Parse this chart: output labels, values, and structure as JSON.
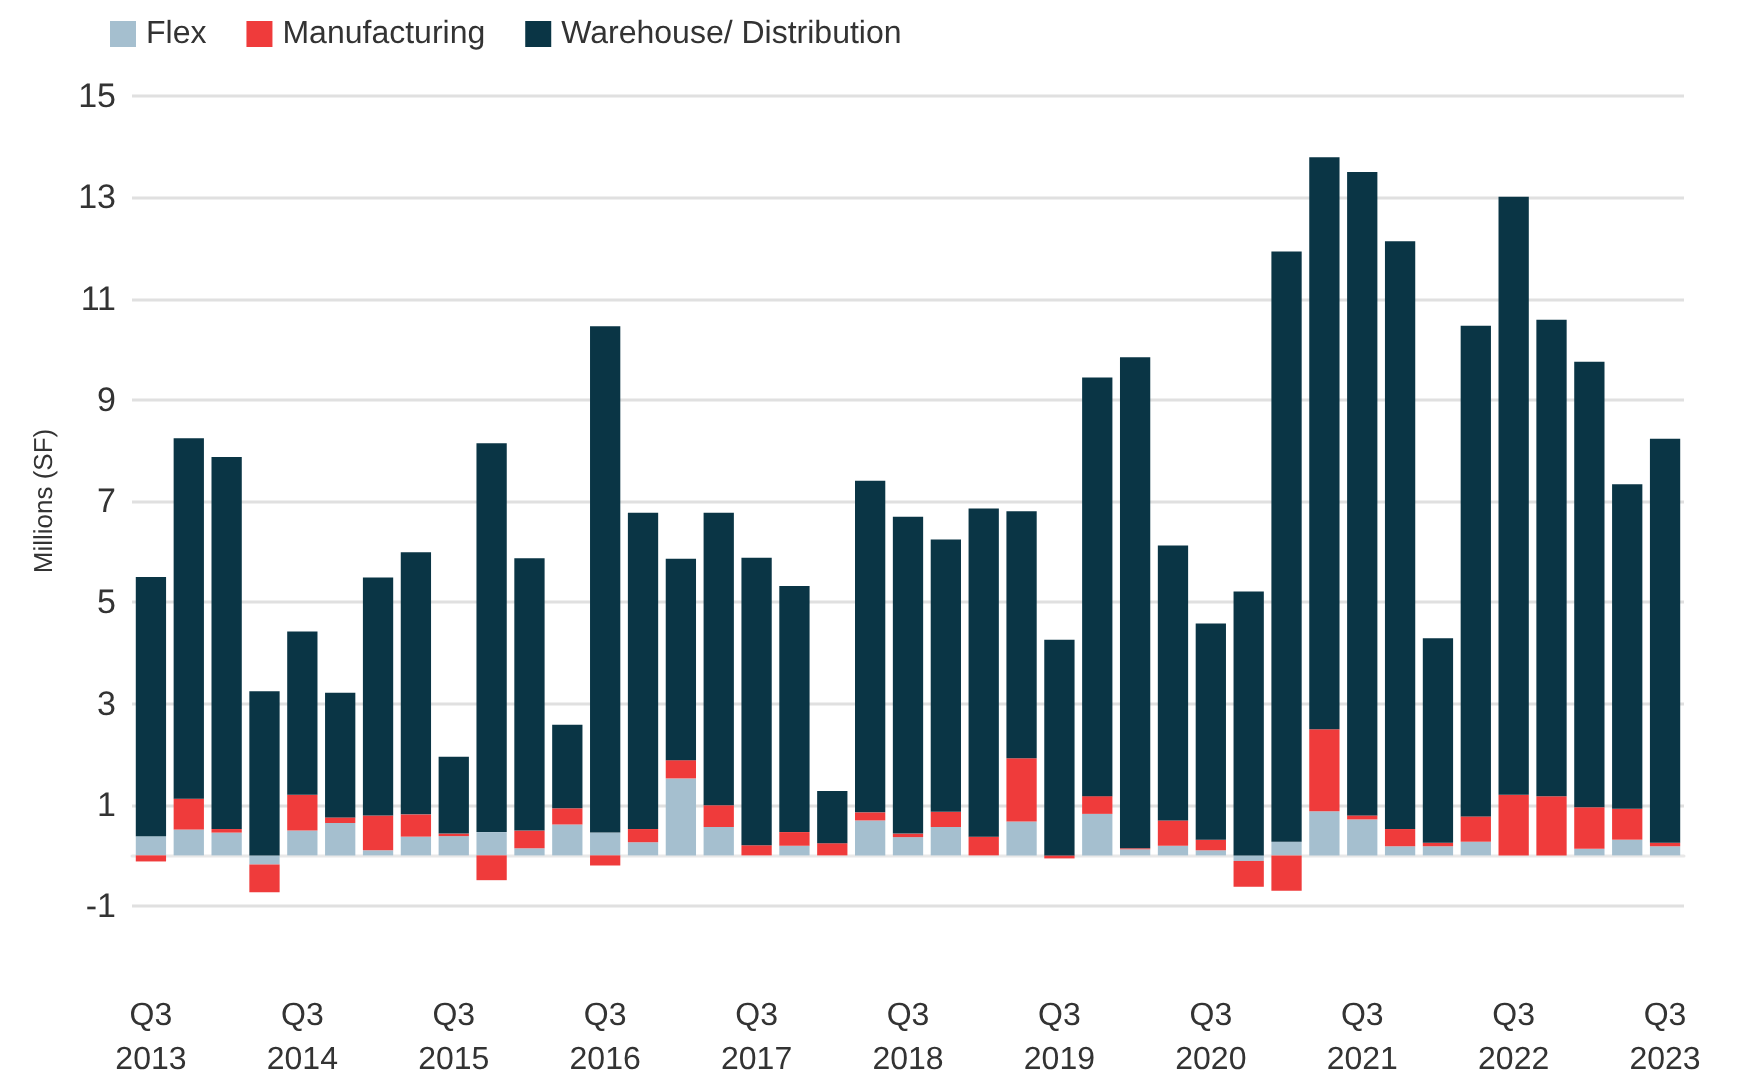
{
  "chart_data": {
    "type": "bar",
    "stacked": true,
    "ylabel": "Millions (SF)",
    "categories": [
      "Q3\n2013",
      null,
      null,
      null,
      "Q3\n2014",
      null,
      null,
      null,
      "Q3\n2015",
      null,
      null,
      null,
      "Q3\n2016",
      null,
      null,
      null,
      "Q3\n2017",
      null,
      null,
      null,
      "Q3\n2018",
      null,
      null,
      null,
      "Q3\n2019",
      null,
      null,
      null,
      "Q3\n2020",
      null,
      null,
      null,
      "Q3\n2021",
      null,
      null,
      null,
      "Q3\n2022",
      null,
      null,
      null,
      "Q3\n2023"
    ],
    "series": [
      {
        "name": "Flex",
        "color": "#a5bfcf",
        "values": [
          0.38,
          0.51,
          0.45,
          -0.18,
          0.49,
          0.64,
          0.1,
          0.37,
          0.38,
          0.46,
          0.14,
          0.61,
          0.45,
          0.26,
          1.52,
          0.56,
          null,
          0.19,
          null,
          0.69,
          0.36,
          0.56,
          0,
          0.67,
          0,
          0.82,
          0.12,
          0.19,
          0.1,
          -0.11,
          0.27,
          0.87,
          0.71,
          0.18,
          0.18,
          0.27,
          null,
          0,
          0.13,
          0.31,
          0.18
        ]
      },
      {
        "name": "Manufacturing",
        "color": "#ef3b3b",
        "values": [
          -0.12,
          0.61,
          0.07,
          -0.55,
          0.71,
          0.11,
          0.69,
          0.44,
          0.05,
          -0.49,
          0.35,
          0.32,
          -0.2,
          0.26,
          0.36,
          0.43,
          0.2,
          0.27,
          0.24,
          0.16,
          0.07,
          0.3,
          0.37,
          1.25,
          -0.06,
          0.35,
          0.02,
          0.5,
          0.21,
          -0.51,
          -0.7,
          1.62,
          0.08,
          0.34,
          0.07,
          0.5,
          1.2,
          1.17,
          0.82,
          0.61,
          0.07
        ]
      },
      {
        "name": "Warehouse/ Distribution",
        "color": "#0a3545",
        "values": [
          5.12,
          7.12,
          7.35,
          3.24,
          3.22,
          2.46,
          4.7,
          5.18,
          1.52,
          7.68,
          5.38,
          1.65,
          10.0,
          6.25,
          3.98,
          5.78,
          5.68,
          4.86,
          1.03,
          6.55,
          6.26,
          5.38,
          6.48,
          4.88,
          4.26,
          8.27,
          9.7,
          5.43,
          4.27,
          5.21,
          11.66,
          11.3,
          12.71,
          11.61,
          4.04,
          9.69,
          11.81,
          9.41,
          8.8,
          6.41,
          7.98
        ]
      }
    ],
    "ylim": [
      -1,
      15
    ],
    "yticks": [
      -1,
      1,
      3,
      5,
      7,
      9,
      11,
      13,
      15
    ],
    "grid": "y",
    "legend": "top left"
  }
}
